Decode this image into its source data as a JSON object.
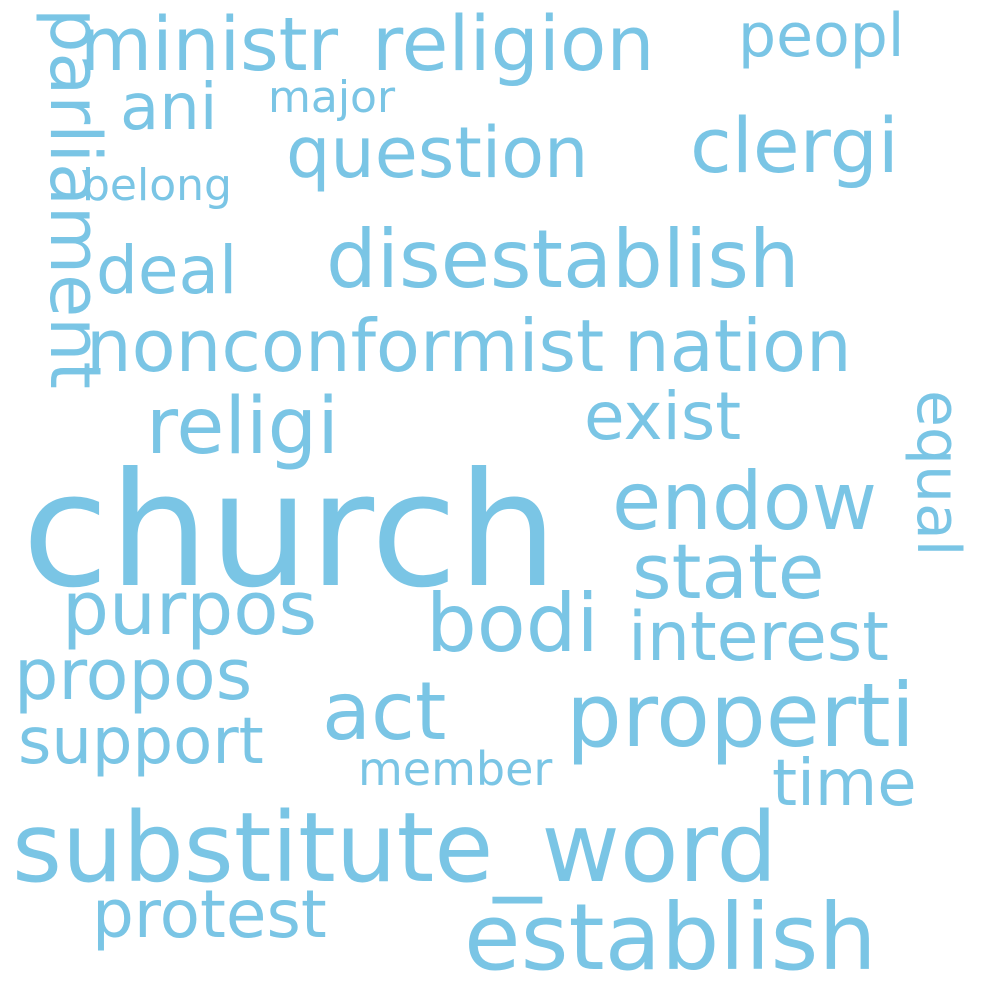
{
  "style": {
    "text_color": "#7ac5e5",
    "background": "#ffffff"
  },
  "words": {
    "ministr": "ministr",
    "religion": "religion",
    "peopl": "peopl",
    "ani": "ani",
    "major": "major",
    "question": "question",
    "clergi": "clergi",
    "belong": "belong",
    "parliament": "parliament",
    "deal": "deal",
    "disestablish": "disestablish",
    "nonconformist": "nonconformist",
    "nation": "nation",
    "religi": "religi",
    "exist": "exist",
    "equal": "equal",
    "church": "church",
    "endow": "endow",
    "state": "state",
    "purpos": "purpos",
    "bodi": "bodi",
    "interest": "interest",
    "propos": "propos",
    "act": "act",
    "properti": "properti",
    "support": "support",
    "member": "member",
    "time": "time",
    "substitute_word": "substitute_word",
    "protest": "protest",
    "establish": "establish"
  }
}
